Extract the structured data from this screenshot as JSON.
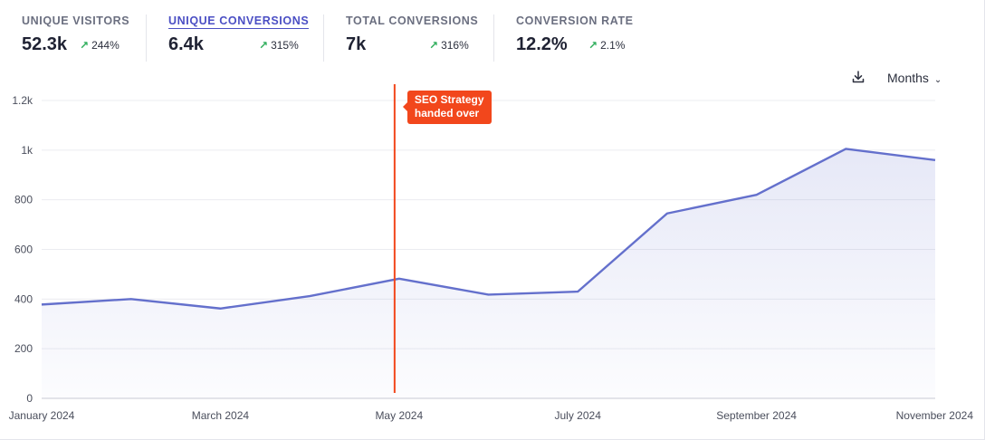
{
  "metrics": [
    {
      "label": "UNIQUE VISITORS",
      "value": "52.3k",
      "delta": "244%",
      "active": false
    },
    {
      "label": "UNIQUE CONVERSIONS",
      "value": "6.4k",
      "delta": "315%",
      "active": true
    },
    {
      "label": "TOTAL CONVERSIONS",
      "value": "7k",
      "delta": "316%",
      "active": false
    },
    {
      "label": "CONVERSION RATE",
      "value": "12.2%",
      "delta": "2.1%",
      "active": false
    }
  ],
  "toolbar": {
    "period_label": "Months",
    "download_icon": "download-icon"
  },
  "colors": {
    "line": "#6470cc",
    "annotation": "#f2471c",
    "positive": "#2fae5c",
    "active_tab": "#4b4fc4"
  },
  "chart_data": {
    "type": "area",
    "x": [
      "January 2024",
      "February 2024",
      "March 2024",
      "April 2024",
      "May 2024",
      "June 2024",
      "July 2024",
      "August 2024",
      "September 2024",
      "October 2024",
      "November 2024"
    ],
    "xtick_labels": [
      "January 2024",
      "March 2024",
      "May 2024",
      "July 2024",
      "September 2024",
      "November 2024"
    ],
    "series": [
      {
        "name": "Unique Conversions",
        "values": [
          378,
          400,
          362,
          412,
          482,
          418,
          430,
          745,
          820,
          1005,
          960
        ]
      }
    ],
    "yticks": [
      0,
      200,
      400,
      600,
      800,
      1000,
      1200
    ],
    "ytick_labels": [
      "0",
      "200",
      "400",
      "600",
      "800",
      "1k",
      "1.2k"
    ],
    "ylim": [
      0,
      1200
    ],
    "grid": true,
    "annotations": [
      {
        "label_line1": "SEO Strategy",
        "label_line2": "handed over",
        "x_index": 3.95
      }
    ],
    "title": "",
    "xlabel": "",
    "ylabel": ""
  }
}
